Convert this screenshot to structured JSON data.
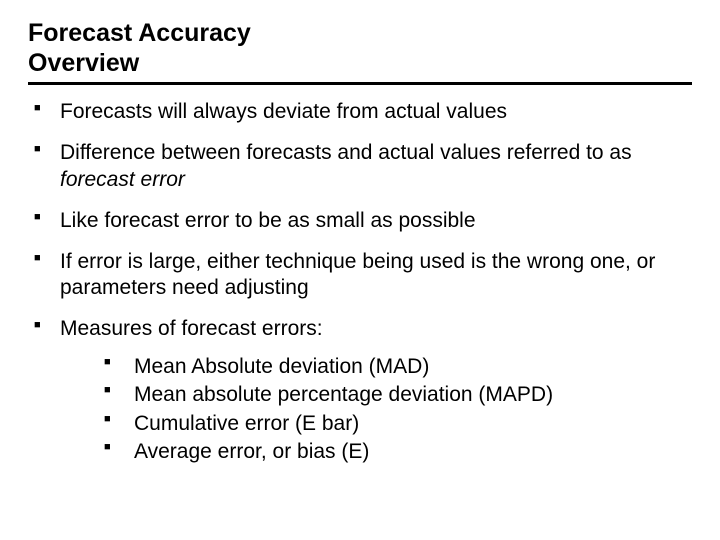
{
  "title": {
    "line1": "Forecast Accuracy",
    "line2": "Overview"
  },
  "bullets": [
    {
      "text": "Forecasts will always deviate from actual values"
    },
    {
      "text_before": "Difference between forecasts and actual values referred to as ",
      "italic": "forecast error"
    },
    {
      "text": "Like forecast error to be as small as possible"
    },
    {
      "text": "If error is large, either technique being used is the wrong one, or parameters need adjusting"
    },
    {
      "text": "Measures of forecast errors:"
    }
  ],
  "sub_bullets": [
    "Mean Absolute deviation (MAD)",
    "Mean absolute percentage deviation (MAPD)",
    "Cumulative error (E bar)",
    "Average error, or  bias (E)"
  ]
}
